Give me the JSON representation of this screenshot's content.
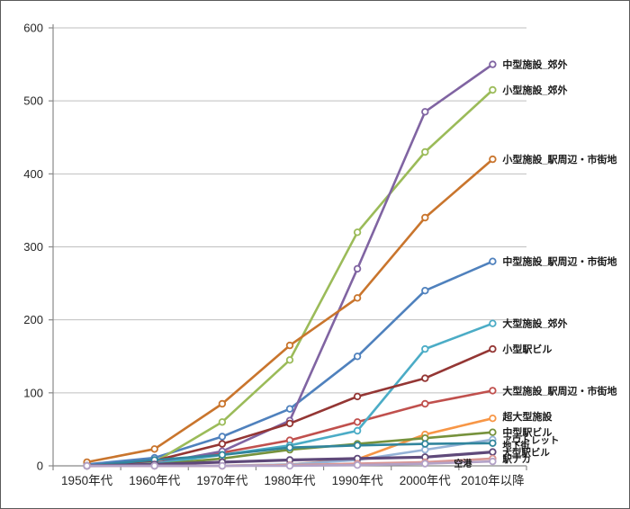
{
  "window": {
    "background": "#FFFFFF",
    "border_color": "#5A5A5A"
  },
  "chart_data": {
    "type": "line",
    "title": "",
    "xlabel": "",
    "ylabel": "",
    "categories": [
      "1950年代",
      "1960年代",
      "1970年代",
      "1980年代",
      "1990年代",
      "2000年代",
      "2010年以降"
    ],
    "ylim": [
      0,
      600
    ],
    "ytick_step": 100,
    "ytick_labels": [
      "0",
      "100",
      "200",
      "300",
      "400",
      "500",
      "600"
    ],
    "grid": true,
    "gridline_color": "#BFBFBF",
    "axis_color": "#898989",
    "tick_text_color": "#262626",
    "legend_position": "labels-at-line-end",
    "marker": "open-circle-white-fill",
    "series": [
      {
        "name": "中型施設_駅周辺・市街地",
        "color": "#4F81BD",
        "values": [
          2,
          11,
          40,
          78,
          150,
          240,
          280
        ]
      },
      {
        "name": "大型施設_駅周辺・市街地",
        "color": "#C0504D",
        "values": [
          0,
          4,
          18,
          35,
          60,
          85,
          103
        ]
      },
      {
        "name": "小型施設_郊外",
        "color": "#9BBB59",
        "values": [
          0,
          5,
          60,
          145,
          320,
          430,
          515
        ]
      },
      {
        "name": "中型施設_郊外",
        "color": "#8064A2",
        "values": [
          0,
          3,
          20,
          62,
          270,
          485,
          550
        ]
      },
      {
        "name": "大型施設_郊外",
        "color": "#4BACC6",
        "values": [
          0,
          3,
          15,
          28,
          48,
          160,
          195
        ]
      },
      {
        "name": "小型施設_駅周辺・市街地",
        "color": "#C9752D",
        "values": [
          5,
          23,
          85,
          165,
          230,
          340,
          420
        ]
      },
      {
        "name": "小型駅ビル",
        "color": "#943634",
        "values": [
          0,
          7,
          30,
          58,
          95,
          120,
          160
        ]
      },
      {
        "name": "超大型施設",
        "color": "#F79646",
        "values": [
          0,
          0,
          0,
          2,
          9,
          43,
          65
        ],
        "label_dy": -2
      },
      {
        "name": "中型駅ビル",
        "color": "#76923C",
        "values": [
          0,
          2,
          10,
          22,
          30,
          38,
          46
        ]
      },
      {
        "name": "アウトレット",
        "color": "#95B3D7",
        "values": [
          0,
          0,
          0,
          2,
          8,
          22,
          36
        ],
        "label_size": 10.5
      },
      {
        "name": "地下街",
        "color": "#31859C",
        "values": [
          0,
          8,
          15,
          25,
          28,
          30,
          31
        ],
        "label_size": 10,
        "label_dy": 2
      },
      {
        "name": "大型駅ビル",
        "color": "#5F497A",
        "values": [
          0,
          2,
          5,
          8,
          10,
          12,
          19
        ],
        "label_size": 10.5,
        "width": 3.2
      },
      {
        "name": "駅ナカ",
        "color": "#D99694",
        "values": [
          0,
          0,
          0,
          1,
          3,
          5,
          10
        ],
        "label_size": 10.5
      },
      {
        "name": "空港",
        "color": "#B3A2C7",
        "values": [
          0,
          0,
          0,
          0,
          1,
          3,
          6
        ],
        "label_size": 10,
        "label_dx": -54,
        "label_dy": 2
      }
    ]
  }
}
